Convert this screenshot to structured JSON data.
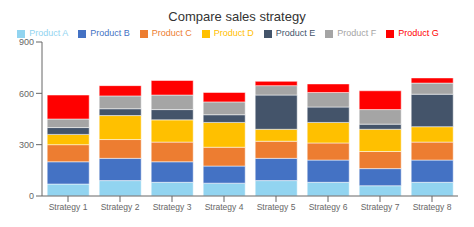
{
  "chart_data": {
    "type": "bar",
    "title": "Compare sales strategy",
    "categories": [
      "Strategy 1",
      "Strategy 2",
      "Strategy 3",
      "Strategy 4",
      "Strategy 5",
      "Strategy 6",
      "Strategy 7",
      "Strategy 8"
    ],
    "series": [
      {
        "name": "Product A",
        "color": "#92D4F0",
        "values": [
          70,
          90,
          80,
          75,
          90,
          80,
          60,
          80
        ]
      },
      {
        "name": "Product B",
        "color": "#4472C4",
        "values": [
          130,
          130,
          120,
          100,
          130,
          130,
          100,
          130
        ]
      },
      {
        "name": "Product C",
        "color": "#ED7D31",
        "values": [
          100,
          110,
          115,
          110,
          100,
          100,
          100,
          105
        ]
      },
      {
        "name": "Product D",
        "color": "#FFC000",
        "values": [
          60,
          140,
          130,
          145,
          70,
          120,
          130,
          90
        ]
      },
      {
        "name": "Product E",
        "color": "#44546A",
        "values": [
          40,
          40,
          60,
          45,
          200,
          90,
          30,
          190
        ]
      },
      {
        "name": "Product F",
        "color": "#A5A5A5",
        "values": [
          50,
          75,
          85,
          75,
          55,
          85,
          85,
          65
        ]
      },
      {
        "name": "Product G",
        "color": "#FF0000",
        "values": [
          140,
          60,
          85,
          55,
          25,
          50,
          110,
          30
        ]
      }
    ],
    "ylim": [
      0,
      900
    ],
    "yticks": [
      0,
      300,
      600,
      900
    ],
    "stacked": true,
    "legend": "top",
    "grid": false
  }
}
